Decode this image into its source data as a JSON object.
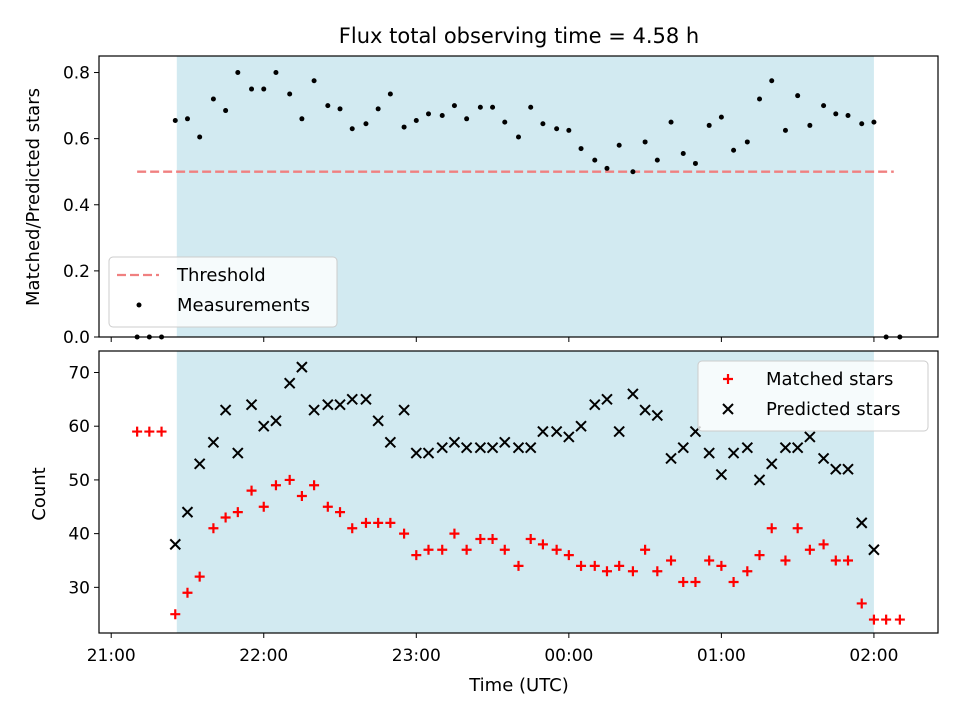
{
  "chart_data": [
    {
      "type": "scatter",
      "title": "Flux total observing time = 4.58 h",
      "xlabel": "",
      "ylabel": "Matched/Predicted stars",
      "ylim": [
        0,
        0.85
      ],
      "yticks": [
        "0.0",
        "0.2",
        "0.4",
        "0.6",
        "0.8"
      ],
      "shaded_span_hours": [
        21.43,
        26.0
      ],
      "shade_color": "#add8e6",
      "threshold": {
        "name": "Threshold",
        "value": 0.5,
        "x_range_hours": [
          21.17,
          26.13
        ],
        "color": "#f08080",
        "style": "dashed"
      },
      "legend": {
        "placement": "lower-left",
        "entries": [
          "Threshold",
          "Measurements"
        ]
      },
      "series": [
        {
          "name": "Measurements",
          "color": "#000000",
          "marker": "dot",
          "points": [
            [
              21.17,
              0
            ],
            [
              21.25,
              0
            ],
            [
              21.33,
              0
            ],
            [
              21.42,
              0.655
            ],
            [
              21.5,
              0.66
            ],
            [
              21.58,
              0.605
            ],
            [
              21.67,
              0.72
            ],
            [
              21.75,
              0.685
            ],
            [
              21.83,
              0.8
            ],
            [
              21.92,
              0.75
            ],
            [
              22.0,
              0.75
            ],
            [
              22.08,
              0.8
            ],
            [
              22.17,
              0.735
            ],
            [
              22.25,
              0.66
            ],
            [
              22.33,
              0.775
            ],
            [
              22.42,
              0.7
            ],
            [
              22.5,
              0.69
            ],
            [
              22.58,
              0.63
            ],
            [
              22.67,
              0.645
            ],
            [
              22.75,
              0.69
            ],
            [
              22.83,
              0.735
            ],
            [
              22.92,
              0.635
            ],
            [
              23.0,
              0.655
            ],
            [
              23.08,
              0.675
            ],
            [
              23.17,
              0.67
            ],
            [
              23.25,
              0.7
            ],
            [
              23.33,
              0.66
            ],
            [
              23.42,
              0.695
            ],
            [
              23.5,
              0.695
            ],
            [
              23.58,
              0.65
            ],
            [
              23.67,
              0.605
            ],
            [
              23.75,
              0.695
            ],
            [
              23.83,
              0.645
            ],
            [
              23.92,
              0.63
            ],
            [
              24.0,
              0.625
            ],
            [
              24.08,
              0.57
            ],
            [
              24.17,
              0.535
            ],
            [
              24.25,
              0.51
            ],
            [
              24.33,
              0.58
            ],
            [
              24.42,
              0.5
            ],
            [
              24.5,
              0.59
            ],
            [
              24.58,
              0.535
            ],
            [
              24.67,
              0.65
            ],
            [
              24.75,
              0.555
            ],
            [
              24.83,
              0.525
            ],
            [
              24.92,
              0.64
            ],
            [
              25.0,
              0.665
            ],
            [
              25.08,
              0.565
            ],
            [
              25.17,
              0.59
            ],
            [
              25.25,
              0.72
            ],
            [
              25.33,
              0.775
            ],
            [
              25.42,
              0.625
            ],
            [
              25.5,
              0.73
            ],
            [
              25.58,
              0.64
            ],
            [
              25.67,
              0.7
            ],
            [
              25.75,
              0.675
            ],
            [
              25.83,
              0.67
            ],
            [
              25.92,
              0.645
            ],
            [
              26.0,
              0.65
            ],
            [
              26.08,
              0
            ],
            [
              26.17,
              0
            ]
          ]
        }
      ]
    },
    {
      "type": "scatter",
      "xlabel": "Time (UTC)",
      "ylabel": "Count",
      "ylim": [
        21.5,
        74
      ],
      "yticks": [
        "30",
        "40",
        "50",
        "60",
        "70"
      ],
      "xlim_hours": [
        20.92,
        26.42
      ],
      "xticks": [
        {
          "hour": 21,
          "label": "21:00"
        },
        {
          "hour": 22,
          "label": "22:00"
        },
        {
          "hour": 23,
          "label": "23:00"
        },
        {
          "hour": 24,
          "label": "00:00"
        },
        {
          "hour": 25,
          "label": "01:00"
        },
        {
          "hour": 26,
          "label": "02:00"
        }
      ],
      "shaded_span_hours": [
        21.43,
        26.0
      ],
      "legend": {
        "placement": "upper-right",
        "entries": [
          "Matched stars",
          "Predicted stars"
        ]
      },
      "series": [
        {
          "name": "Matched stars",
          "color": "#ff0000",
          "marker": "plus",
          "points": [
            [
              21.17,
              59
            ],
            [
              21.25,
              59
            ],
            [
              21.33,
              59
            ],
            [
              21.42,
              25
            ],
            [
              21.5,
              29
            ],
            [
              21.58,
              32
            ],
            [
              21.67,
              41
            ],
            [
              21.75,
              43
            ],
            [
              21.83,
              44
            ],
            [
              21.92,
              48
            ],
            [
              22.0,
              45
            ],
            [
              22.08,
              49
            ],
            [
              22.17,
              50
            ],
            [
              22.25,
              47
            ],
            [
              22.33,
              49
            ],
            [
              22.42,
              45
            ],
            [
              22.5,
              44
            ],
            [
              22.58,
              41
            ],
            [
              22.67,
              42
            ],
            [
              22.75,
              42
            ],
            [
              22.83,
              42
            ],
            [
              22.92,
              40
            ],
            [
              23.0,
              36
            ],
            [
              23.08,
              37
            ],
            [
              23.17,
              37
            ],
            [
              23.25,
              40
            ],
            [
              23.33,
              37
            ],
            [
              23.42,
              39
            ],
            [
              23.5,
              39
            ],
            [
              23.58,
              37
            ],
            [
              23.67,
              34
            ],
            [
              23.75,
              39
            ],
            [
              23.83,
              38
            ],
            [
              23.92,
              37
            ],
            [
              24.0,
              36
            ],
            [
              24.08,
              34
            ],
            [
              24.17,
              34
            ],
            [
              24.25,
              33
            ],
            [
              24.33,
              34
            ],
            [
              24.42,
              33
            ],
            [
              24.5,
              37
            ],
            [
              24.58,
              33
            ],
            [
              24.67,
              35
            ],
            [
              24.75,
              31
            ],
            [
              24.83,
              31
            ],
            [
              24.92,
              35
            ],
            [
              25.0,
              34
            ],
            [
              25.08,
              31
            ],
            [
              25.17,
              33
            ],
            [
              25.25,
              36
            ],
            [
              25.33,
              41
            ],
            [
              25.42,
              35
            ],
            [
              25.5,
              41
            ],
            [
              25.58,
              37
            ],
            [
              25.67,
              38
            ],
            [
              25.75,
              35
            ],
            [
              25.83,
              35
            ],
            [
              25.92,
              27
            ],
            [
              26.0,
              24
            ],
            [
              26.08,
              24
            ],
            [
              26.17,
              24
            ]
          ]
        },
        {
          "name": "Predicted stars",
          "color": "#000000",
          "marker": "x",
          "points": [
            [
              21.42,
              38
            ],
            [
              21.5,
              44
            ],
            [
              21.58,
              53
            ],
            [
              21.67,
              57
            ],
            [
              21.75,
              63
            ],
            [
              21.83,
              55
            ],
            [
              21.92,
              64
            ],
            [
              22.0,
              60
            ],
            [
              22.08,
              61
            ],
            [
              22.17,
              68
            ],
            [
              22.25,
              71
            ],
            [
              22.33,
              63
            ],
            [
              22.42,
              64
            ],
            [
              22.5,
              64
            ],
            [
              22.58,
              65
            ],
            [
              22.67,
              65
            ],
            [
              22.75,
              61
            ],
            [
              22.83,
              57
            ],
            [
              22.92,
              63
            ],
            [
              23.0,
              55
            ],
            [
              23.08,
              55
            ],
            [
              23.17,
              56
            ],
            [
              23.25,
              57
            ],
            [
              23.33,
              56
            ],
            [
              23.42,
              56
            ],
            [
              23.5,
              56
            ],
            [
              23.58,
              57
            ],
            [
              23.67,
              56
            ],
            [
              23.75,
              56
            ],
            [
              23.83,
              59
            ],
            [
              23.92,
              59
            ],
            [
              24.0,
              58
            ],
            [
              24.08,
              60
            ],
            [
              24.17,
              64
            ],
            [
              24.25,
              65
            ],
            [
              24.33,
              59
            ],
            [
              24.42,
              66
            ],
            [
              24.5,
              63
            ],
            [
              24.58,
              62
            ],
            [
              24.67,
              54
            ],
            [
              24.75,
              56
            ],
            [
              24.83,
              59
            ],
            [
              24.92,
              55
            ],
            [
              25.0,
              51
            ],
            [
              25.08,
              55
            ],
            [
              25.17,
              56
            ],
            [
              25.25,
              50
            ],
            [
              25.33,
              53
            ],
            [
              25.42,
              56
            ],
            [
              25.5,
              56
            ],
            [
              25.58,
              58
            ],
            [
              25.67,
              54
            ],
            [
              25.75,
              52
            ],
            [
              25.83,
              52
            ],
            [
              25.92,
              42
            ],
            [
              26.0,
              37
            ]
          ]
        }
      ]
    }
  ]
}
